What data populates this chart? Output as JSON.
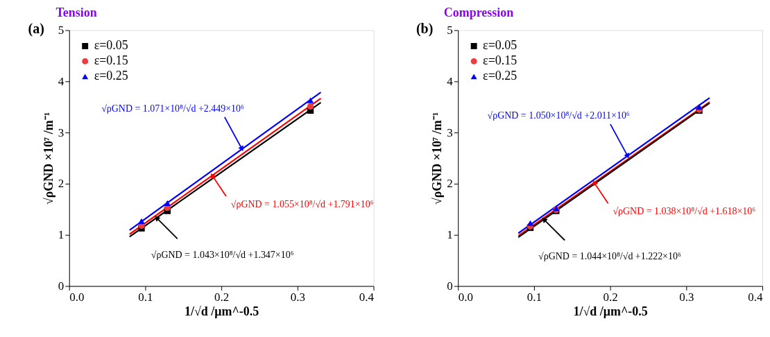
{
  "chart_data": [
    {
      "type": "scatter",
      "title": "Tension",
      "xlabel": "1/√d /μm^-0.5",
      "ylabel": "√ρGND ×10⁷ /m⁻¹",
      "xlim": [
        0,
        0.4
      ],
      "xticks": [
        {
          "value": 0,
          "label": "0.0"
        },
        0.1,
        0.2,
        0.3,
        0.4
      ],
      "ylim": [
        0,
        5
      ],
      "yticks": [
        0,
        1,
        2,
        3,
        4,
        5
      ],
      "grid": false,
      "legend": "top left",
      "series": [
        {
          "name": "ε=0.05",
          "color": "#000000",
          "marker": "square",
          "x": [
            0.095,
            0.129,
            0.317
          ],
          "values": [
            1.13,
            1.47,
            3.43
          ]
        },
        {
          "name": "ε=0.15",
          "color": "#ee3b3b",
          "marker": "circle",
          "x": [
            0.095,
            0.129,
            0.317
          ],
          "values": [
            1.18,
            1.53,
            3.51
          ]
        },
        {
          "name": "ε=0.25",
          "color": "#0000ff",
          "marker": "triangle",
          "x": [
            0.095,
            0.129,
            0.317
          ],
          "values": [
            1.27,
            1.62,
            3.63
          ]
        },
        {
          "type": "line",
          "color": "#0000ff",
          "x": [
            0.08,
            0.33
          ],
          "values": [
            1.1,
            3.78
          ]
        },
        {
          "type": "line",
          "color": "#ff0000",
          "x": [
            0.08,
            0.33
          ],
          "values": [
            1.02,
            3.66
          ]
        },
        {
          "type": "line",
          "color": "#000000",
          "x": [
            0.08,
            0.33
          ],
          "values": [
            0.97,
            3.58
          ]
        }
      ],
      "annotations": [
        "(a)",
        {
          "text": "√ρGND = 1.071×10⁸/√d +2.449×10⁶",
          "x": 0.227,
          "y": 2.68
        },
        {
          "text": "√ρGND = 1.055×10⁸/√d +1.791×10⁶",
          "x": 0.188,
          "y": 2.16
        },
        {
          "text": "√ρGND = 1.043×10⁸/√d +1.347×10⁶",
          "x": 0.115,
          "y": 1.33
        }
      ]
    },
    {
      "type": "scatter",
      "title": "Compression",
      "xlabel": "1/√d /μm^-0.5",
      "ylabel": "√ρGND ×10⁷ /m⁻¹",
      "xlim": [
        0,
        0.4
      ],
      "xticks": [
        {
          "value": 0,
          "label": "0.0"
        },
        0.1,
        0.2,
        0.3,
        0.4
      ],
      "ylim": [
        0,
        5
      ],
      "yticks": [
        0,
        1,
        2,
        3,
        4,
        5
      ],
      "grid": false,
      "legend": "top left",
      "series": [
        {
          "name": "ε=0.05",
          "color": "#000000",
          "marker": "square",
          "x": [
            0.095,
            0.129,
            0.317
          ],
          "values": [
            1.14,
            1.47,
            3.43
          ]
        },
        {
          "name": "ε=0.15",
          "color": "#ee3b3b",
          "marker": "circle",
          "x": [
            0.095,
            0.129,
            0.317
          ],
          "values": [
            1.17,
            1.49,
            3.45
          ]
        },
        {
          "name": "ε=0.25",
          "color": "#0000ff",
          "marker": "triangle",
          "x": [
            0.095,
            0.129,
            0.317
          ],
          "values": [
            1.23,
            1.52,
            3.5
          ]
        },
        {
          "type": "line",
          "color": "#0000ff",
          "x": [
            0.08,
            0.33
          ],
          "values": [
            1.04,
            3.67
          ]
        },
        {
          "type": "line",
          "color": "#ff0000",
          "x": [
            0.08,
            0.33
          ],
          "values": [
            0.99,
            3.59
          ]
        },
        {
          "type": "line",
          "color": "#000000",
          "x": [
            0.08,
            0.33
          ],
          "values": [
            0.96,
            3.57
          ]
        }
      ],
      "annotations": [
        "(b)",
        {
          "text": "√ρGND = 1.050×10⁸/√d +2.011×10⁶",
          "x": 0.223,
          "y": 2.54
        },
        {
          "text": "√ρGND = 1.038×10⁸/√d +1.618×10⁶",
          "x": 0.179,
          "y": 2.02
        },
        {
          "text": "√ρGND = 1.044×10⁸/√d +1.222×10⁶",
          "x": 0.113,
          "y": 1.3
        }
      ]
    }
  ]
}
